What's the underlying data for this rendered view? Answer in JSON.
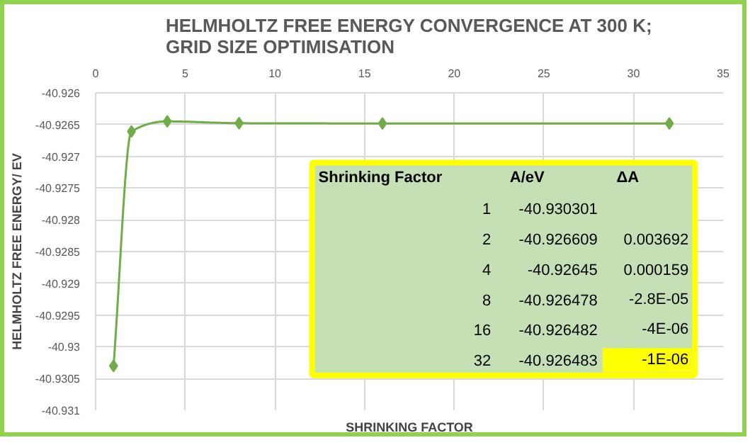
{
  "chart_data": {
    "type": "line",
    "title": "HELMHOLTZ FREE ENERGY CONVERGENCE AT 300 K;\nGRID SIZE OPTIMISATION",
    "xlabel": "SHRINKING FACTOR",
    "ylabel": "HELMHOLTZ FREE ENERGY/ EV",
    "x": [
      1,
      2,
      4,
      8,
      16,
      32
    ],
    "series": [
      {
        "color": "#70ad47",
        "values": [
          -40.930301,
          -40.926609,
          -40.92645,
          -40.926478,
          -40.926482,
          -40.926483
        ]
      }
    ],
    "xlim": [
      0,
      35
    ],
    "xticks": [
      0,
      5,
      10,
      15,
      20,
      25,
      30,
      35
    ],
    "ylim": [
      -40.931,
      -40.926
    ],
    "yticks": [
      {
        "value": -40.931,
        "label": "-40.931"
      },
      {
        "value": -40.9305,
        "label": "-40.9305"
      },
      {
        "value": -40.93,
        "label": "-40.93"
      },
      {
        "value": -40.9295,
        "label": "-40.9295"
      },
      {
        "value": -40.929,
        "label": "-40.929"
      },
      {
        "value": -40.9285,
        "label": "-40.9285"
      },
      {
        "value": -40.928,
        "label": "-40.928"
      },
      {
        "value": -40.9275,
        "label": "-40.9275"
      },
      {
        "value": -40.927,
        "label": "-40.927"
      },
      {
        "value": -40.9265,
        "label": "-40.9265"
      },
      {
        "value": -40.926,
        "label": "-40.926"
      }
    ],
    "grid": true,
    "marker": "diamond",
    "line_style": "solid",
    "annotations": [
      "Shrinking Factor",
      "A/eV",
      "ΔA",
      "1",
      "2",
      "4",
      "8",
      "16",
      "32",
      "-40.930301",
      "-40.926609",
      "-40.92645",
      "-40.926478",
      "-40.926482",
      "-40.926483",
      "0.003692",
      "0.000159",
      "-2.8E-05",
      "-4E-06",
      "-1E-06"
    ]
  }
}
